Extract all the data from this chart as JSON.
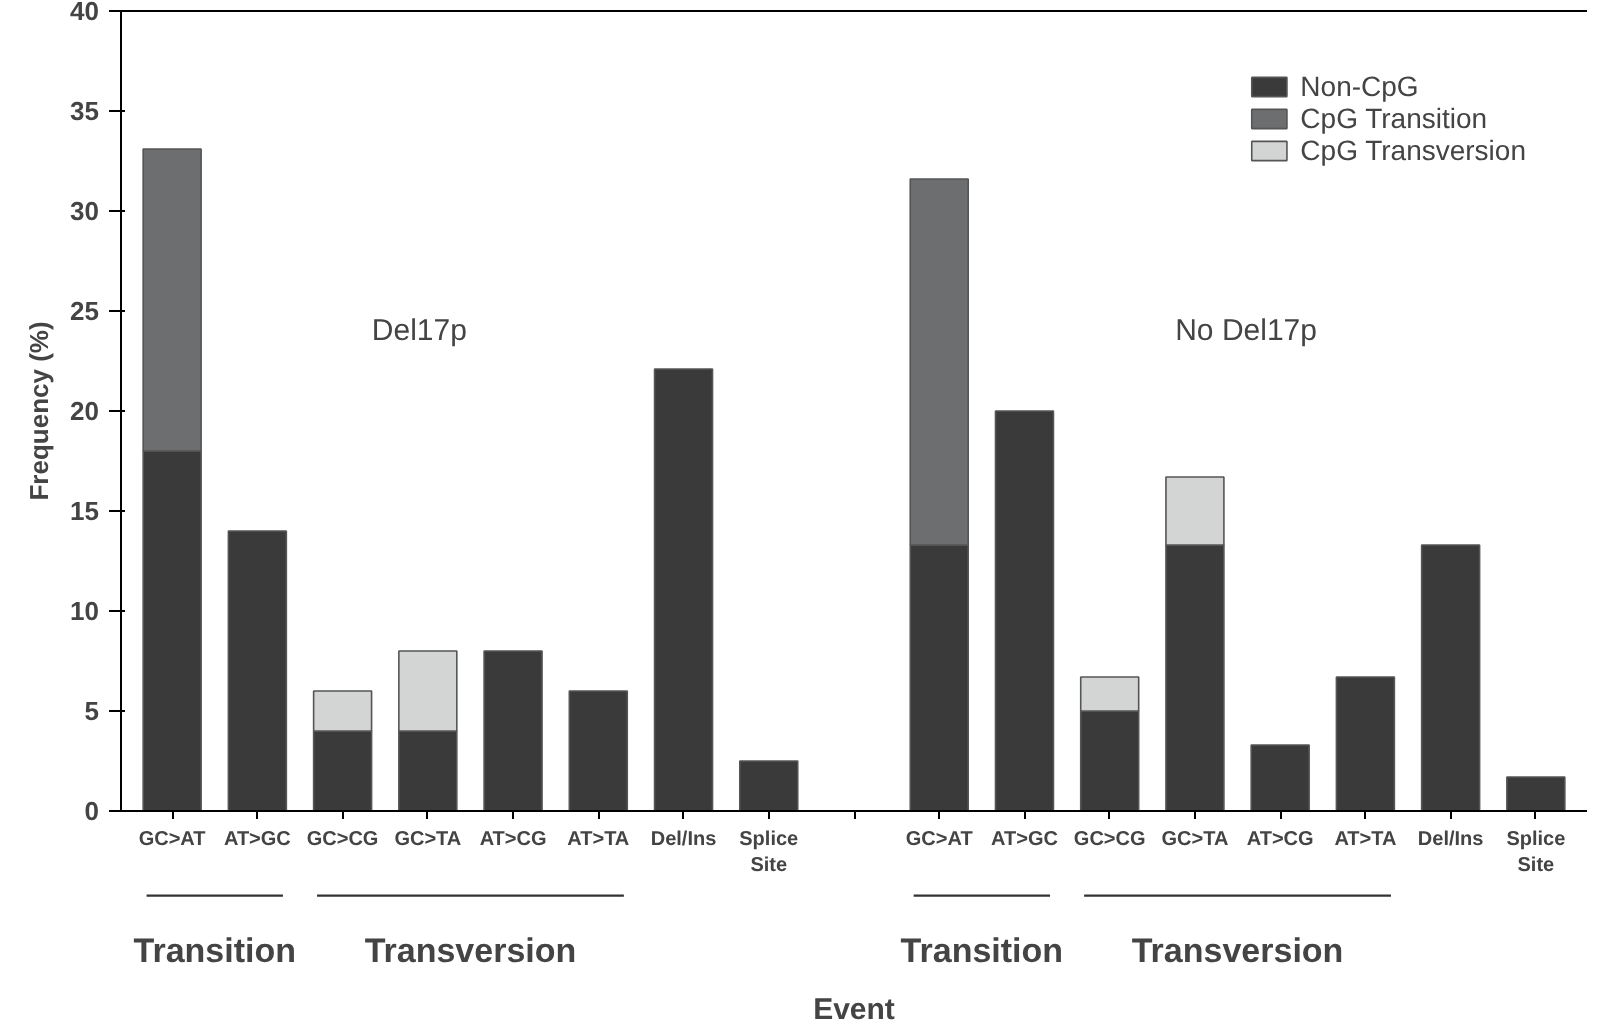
{
  "chart_data": {
    "type": "bar",
    "stacked": true,
    "xlabel": "Event",
    "ylabel": "Frequency (%)",
    "categories": [
      "GC>AT",
      "AT>GC",
      "GC>CG",
      "GC>TA",
      "AT>CG",
      "AT>TA",
      "Del/Ins",
      "Splice Site",
      null,
      "GC>AT",
      "AT>GC",
      "GC>CG",
      "GC>TA",
      "AT>CG",
      "AT>TA",
      "Del/Ins",
      "Splice Site"
    ],
    "series": [
      {
        "name": "Non-CpG",
        "color": "#3a3a3a",
        "values": [
          18,
          14,
          4,
          4,
          8,
          6,
          22.1,
          2.5,
          null,
          13.3,
          20,
          5,
          13.3,
          3.3,
          6.7,
          13.3,
          1.7
        ]
      },
      {
        "name": "CpG Transition",
        "color": "#6d6e70",
        "values": [
          15.1,
          0,
          0,
          0,
          0,
          0,
          0,
          0,
          null,
          18.3,
          0,
          0,
          0,
          0,
          0,
          0,
          0
        ]
      },
      {
        "name": "CpG Transversion",
        "color": "#d3d5d5",
        "values": [
          0,
          0,
          2,
          4,
          0,
          0,
          0,
          0,
          null,
          0,
          0,
          1.7,
          3.4,
          0,
          0,
          0,
          0
        ]
      }
    ],
    "ylim": [
      0,
      40
    ],
    "yticks": [
      0,
      5,
      10,
      15,
      20,
      25,
      30,
      35,
      40
    ],
    "grid": false,
    "legend": "top right",
    "annotations": [
      "Del17p",
      "No Del17p",
      "Transition",
      "Transversion",
      "Transition",
      "Transversion"
    ]
  }
}
